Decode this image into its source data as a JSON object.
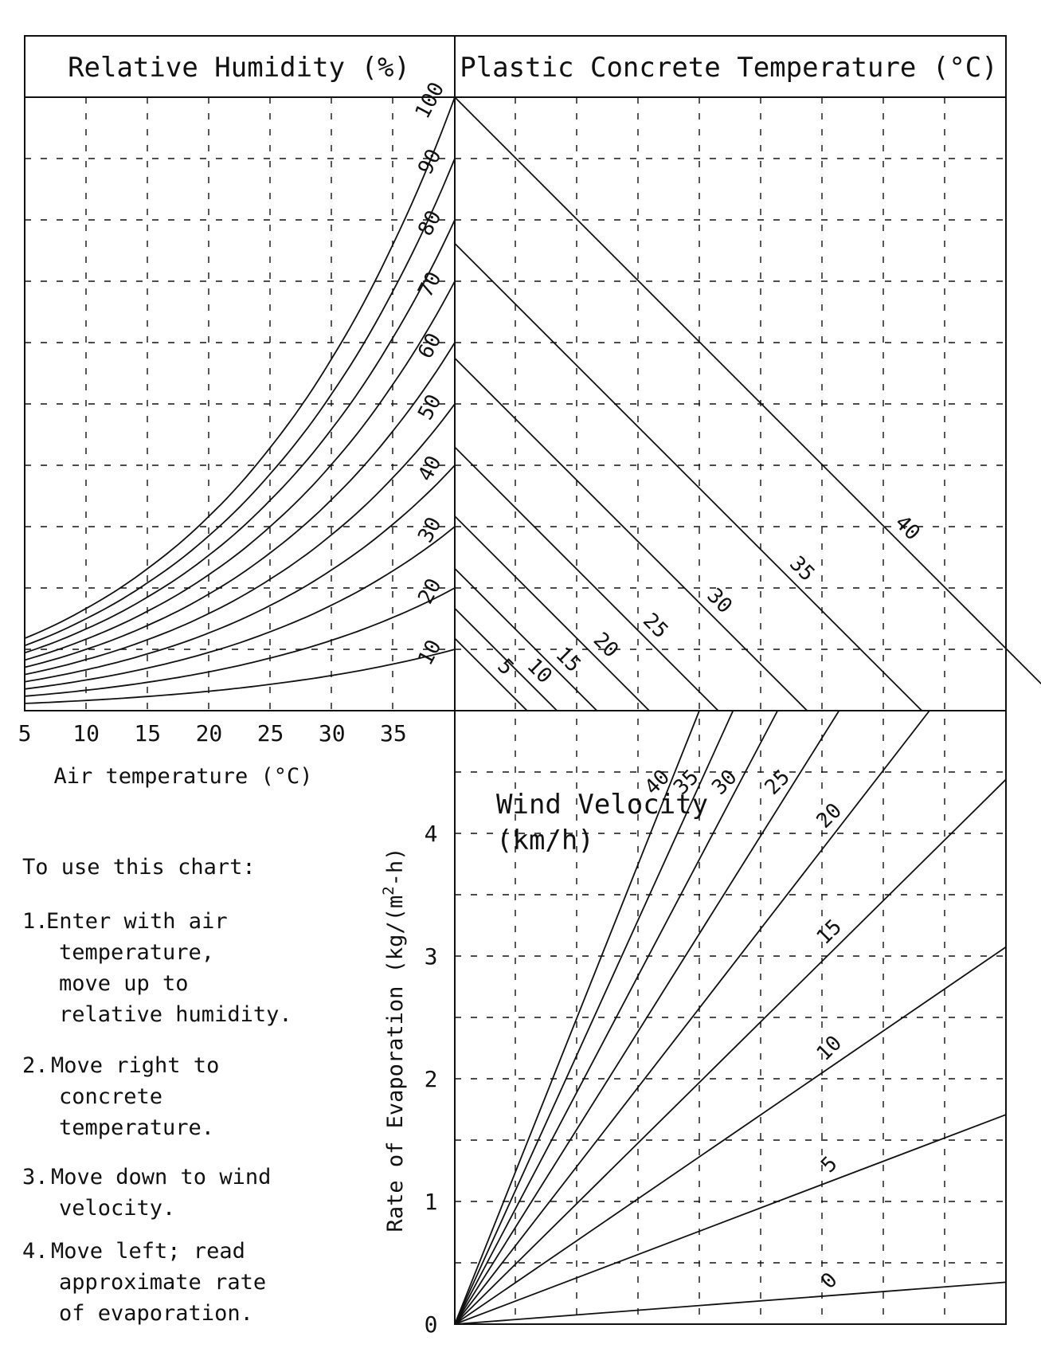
{
  "panels": {
    "humidity_title": "Relative Humidity (%)",
    "concrete_title": "Plastic Concrete Temperature (°C)",
    "wind_title_line1": "Wind Velocity",
    "wind_title_line2": "(km/h)"
  },
  "axes": {
    "air_temp_label": "Air temperature (°C)",
    "air_temp_ticks": [
      "5",
      "10",
      "15",
      "20",
      "25",
      "30",
      "35"
    ],
    "evap_label": "Rate of Evaporation (kg/(m",
    "evap_label_sup": "2",
    "evap_label_tail": "-h)",
    "evap_ticks": [
      "0",
      "1",
      "2",
      "3",
      "4"
    ]
  },
  "instructions": {
    "heading": "To use this chart:",
    "steps": [
      {
        "num": "1.",
        "lines": [
          "Enter with air",
          "temperature,",
          "move up to",
          "relative humidity."
        ]
      },
      {
        "num": "2.",
        "lines": [
          "Move right to",
          "concrete",
          "temperature."
        ]
      },
      {
        "num": "3.",
        "lines": [
          "Move down to wind",
          "velocity."
        ]
      },
      {
        "num": "4.",
        "lines": [
          "Move left; read",
          "approximate rate",
          "of evaporation."
        ]
      }
    ]
  },
  "chart_data": [
    {
      "type": "line",
      "panel": "relative-humidity",
      "title": "Relative Humidity (%)",
      "xlabel": "Air temperature (°C)",
      "xlim": [
        5,
        40
      ],
      "x_ticks": [
        5,
        10,
        15,
        20,
        25,
        30,
        35
      ],
      "grid": true,
      "series_labels": [
        "10",
        "20",
        "30",
        "40",
        "50",
        "60",
        "70",
        "80",
        "90",
        "100"
      ],
      "humidity_percent": [
        10,
        20,
        30,
        40,
        50,
        60,
        70,
        80,
        90,
        100
      ],
      "curve_x": [
        5,
        10,
        15,
        20,
        25,
        30,
        35,
        40
      ],
      "saturation_vapor_pressure_kpa": [
        0.87,
        1.23,
        1.71,
        2.34,
        3.17,
        4.24,
        5.62,
        7.38
      ]
    },
    {
      "type": "line",
      "panel": "plastic-concrete-temperature",
      "title": "Plastic Concrete Temperature (°C)",
      "grid": true,
      "series_labels": [
        "5",
        "10",
        "15",
        "20",
        "25",
        "30",
        "35",
        "40"
      ],
      "concrete_temp_c": [
        5,
        10,
        15,
        20,
        25,
        30,
        35,
        40
      ],
      "saturation_vapor_pressure_kpa": [
        0.87,
        1.23,
        1.71,
        2.34,
        3.17,
        4.24,
        5.62,
        7.38
      ]
    },
    {
      "type": "line",
      "panel": "wind-velocity",
      "title": "Wind Velocity (km/h)",
      "ylabel": "Rate of Evaporation (kg/(m2-h)",
      "ylim": [
        0,
        5
      ],
      "y_ticks": [
        0,
        1,
        2,
        3,
        4
      ],
      "grid": true,
      "series_labels": [
        "0",
        "5",
        "10",
        "15",
        "20",
        "25",
        "30",
        "35",
        "40"
      ],
      "wind_kmh": [
        0,
        5,
        10,
        15,
        20,
        25,
        30,
        35,
        40
      ]
    }
  ]
}
